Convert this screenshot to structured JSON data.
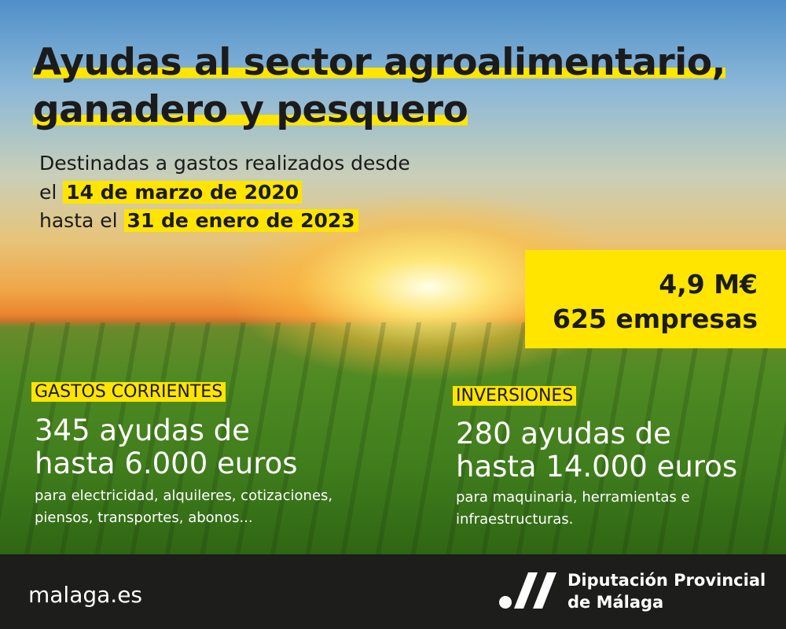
{
  "header": {
    "title_lines": [
      "Ayudas al sector agroalimentario,",
      "ganadero y pesquero"
    ],
    "subtitle": {
      "line1": "Destinadas a gastos realizados desde",
      "line2_prefix": "el",
      "start_date": "14 de marzo de 2020",
      "line3_prefix": "hasta el",
      "end_date": "31 de enero de 2023"
    }
  },
  "totals": {
    "amount": "4,9 M€",
    "companies": "625 empresas"
  },
  "sections": [
    {
      "label": "GASTOS CORRIENTES",
      "headline_lines": [
        "345 ayudas de",
        "hasta 6.000 euros"
      ],
      "detail_lines": [
        "para electricidad, alquileres, cotizaciones,",
        "piensos, transportes, abonos..."
      ]
    },
    {
      "label": "INVERSIONES",
      "headline_lines": [
        "280 ayudas de",
        "hasta 14.000 euros"
      ],
      "detail_lines": [
        "para maquinaria, herramientas e",
        "infraestructuras."
      ]
    }
  ],
  "footer": {
    "website": "malaga.es",
    "org_lines": [
      "Diputación Provincial",
      "de Málaga"
    ]
  }
}
